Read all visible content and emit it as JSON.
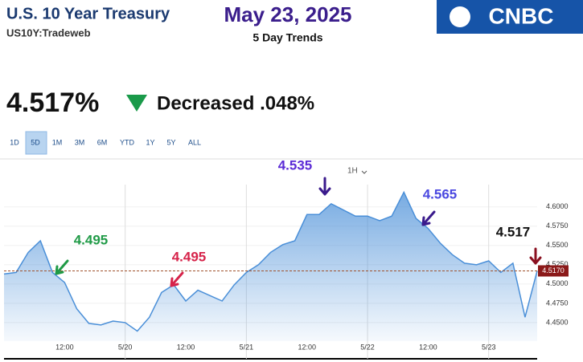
{
  "header": {
    "title": "U.S. 10 Year Treasury",
    "symbol": "US10Y:Tradeweb",
    "date": "May 23, 2025",
    "subtitle": "5 Day Trends",
    "logo": "CNBC",
    "price": "4.517%",
    "change": "Decreased .048%",
    "ranges": [
      "1D",
      "5D",
      "1M",
      "3M",
      "6M",
      "YTD",
      "1Y",
      "5Y",
      "ALL"
    ],
    "interval": "1H"
  },
  "chart_data": {
    "type": "area",
    "color": "#4a8fd8",
    "categories": [
      null,
      null,
      null,
      null,
      null,
      "12:00",
      null,
      null,
      null,
      null,
      "5/20",
      null,
      null,
      null,
      null,
      "12:00",
      null,
      null,
      null,
      null,
      "5/21",
      null,
      null,
      null,
      null,
      "12:00",
      null,
      null,
      null,
      null,
      "5/22",
      null,
      null,
      null,
      null,
      "12:00",
      null,
      null,
      null,
      null,
      "5/23",
      null,
      null,
      null,
      null
    ],
    "values": [
      4.513,
      4.515,
      4.541,
      4.556,
      4.515,
      4.502,
      4.468,
      4.449,
      4.447,
      4.452,
      4.45,
      4.439,
      4.457,
      4.489,
      4.499,
      4.478,
      4.492,
      4.485,
      4.478,
      4.499,
      4.515,
      4.525,
      4.541,
      4.551,
      4.556,
      4.59,
      4.59,
      4.604,
      4.596,
      4.588,
      4.588,
      4.582,
      4.588,
      4.619,
      4.585,
      4.572,
      4.553,
      4.538,
      4.527,
      4.525,
      4.53,
      4.515,
      4.527,
      4.457,
      4.517
    ],
    "ylim": [
      4.426,
      4.66
    ],
    "yticks": [
      {
        "value": 4.45,
        "label": "4.4500"
      },
      {
        "value": 4.475,
        "label": "4.4750"
      },
      {
        "value": 4.5,
        "label": "4.5000"
      },
      {
        "value": 4.525,
        "label": "4.5250"
      },
      {
        "value": 4.55,
        "label": "4.5500"
      },
      {
        "value": 4.575,
        "label": "4.5750"
      },
      {
        "value": 4.6,
        "label": "4.6000"
      }
    ],
    "current_price": {
      "value": 4.517,
      "label": "4.5170"
    },
    "annotations": [
      {
        "text": "4.495",
        "color": "#1f9a46"
      },
      {
        "text": "4.495",
        "color": "#d6234a"
      },
      {
        "text": "4.535",
        "color": "#5b2bd6"
      },
      {
        "text": "4.565",
        "color": "#4a48e0"
      },
      {
        "text": "4.517",
        "color": "#111111"
      }
    ]
  }
}
